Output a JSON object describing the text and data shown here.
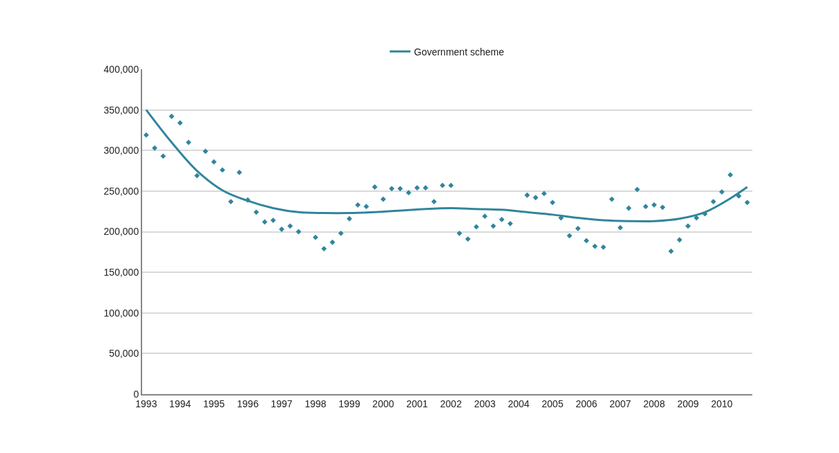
{
  "chart_data": {
    "type": "scatter",
    "x": [
      1993,
      1993.25,
      1993.5,
      1993.75,
      1994,
      1994.25,
      1994.5,
      1994.75,
      1995,
      1995.25,
      1995.5,
      1995.75,
      1996,
      1996.25,
      1996.5,
      1996.75,
      1997,
      1997.25,
      1997.5,
      1997.75,
      1998,
      1998.25,
      1998.5,
      1998.75,
      1999,
      1999.25,
      1999.5,
      1999.75,
      2000,
      2000.25,
      2000.5,
      2000.75,
      2001,
      2001.25,
      2001.5,
      2001.75,
      2002,
      2002.25,
      2002.5,
      2002.75,
      2003,
      2003.25,
      2003.5,
      2003.75,
      2004,
      2004.25,
      2004.5,
      2004.75,
      2005,
      2005.25,
      2005.5,
      2005.75,
      2006,
      2006.25,
      2006.5,
      2006.75,
      2007,
      2007.25,
      2007.5,
      2007.75,
      2008,
      2008.25,
      2008.5,
      2008.75,
      2009,
      2009.25,
      2009.5,
      2009.75,
      2010,
      2010.25,
      2010.5,
      2010.75
    ],
    "series": [
      {
        "color": "#31859c",
        "marker": "diamond",
        "values": [
          319000,
          303000,
          293000,
          342000,
          334000,
          310000,
          269000,
          299000,
          286000,
          276000,
          237000,
          273000,
          239000,
          224000,
          212000,
          214000,
          203000,
          207000,
          200000,
          null,
          193000,
          179000,
          187000,
          198000,
          216000,
          233000,
          231000,
          255000,
          240000,
          253000,
          253000,
          248000,
          254000,
          254000,
          237000,
          257000,
          257000,
          198000,
          191000,
          206000,
          219000,
          207000,
          215000,
          210000,
          null,
          245000,
          242000,
          247000,
          236000,
          217000,
          195000,
          204000,
          189000,
          182000,
          181000,
          240000,
          205000,
          229000,
          252000,
          231000,
          233000,
          230000,
          176000,
          190000,
          207000,
          217000,
          222000,
          237000,
          249000,
          270000,
          244000,
          236000
        ]
      },
      {
        "type": "line",
        "name": "Government scheme",
        "color": "#31859c",
        "line_style": "solid",
        "x": [
          1993,
          1993.75,
          1994.5,
          1995.25,
          1996,
          1996.75,
          1997.5,
          1998.25,
          1999,
          1999.75,
          2000.5,
          2001.25,
          2002,
          2002.75,
          2003.5,
          2004.25,
          2005,
          2005.75,
          2006.5,
          2007.25,
          2008,
          2008.75,
          2009.5,
          2010.25,
          2010.75
        ],
        "values": [
          350000,
          310000,
          275000,
          251000,
          238000,
          229000,
          224000,
          223000,
          223000,
          224000,
          226000,
          228000,
          229000,
          228000,
          227000,
          224000,
          221000,
          217000,
          214000,
          213000,
          213000,
          216000,
          224000,
          241000,
          255000
        ]
      }
    ],
    "xlim": [
      1992.88,
      2010.9
    ],
    "xticks": [
      1993,
      1994,
      1995,
      1996,
      1997,
      1998,
      1999,
      2000,
      2001,
      2002,
      2003,
      2004,
      2005,
      2006,
      2007,
      2008,
      2009,
      2010
    ],
    "ylim": [
      0,
      400000
    ],
    "yticks": [
      {
        "value": 0,
        "label": "0"
      },
      {
        "value": 50000,
        "label": "50,000"
      },
      {
        "value": 100000,
        "label": "100,000"
      },
      {
        "value": 150000,
        "label": "150,000"
      },
      {
        "value": 200000,
        "label": "200,000"
      },
      {
        "value": 250000,
        "label": "250,000"
      },
      {
        "value": 300000,
        "label": "300,000"
      },
      {
        "value": 350000,
        "label": "350,000"
      },
      {
        "value": 400000,
        "label": "400,000"
      }
    ],
    "grid": "y",
    "legend": "top"
  }
}
